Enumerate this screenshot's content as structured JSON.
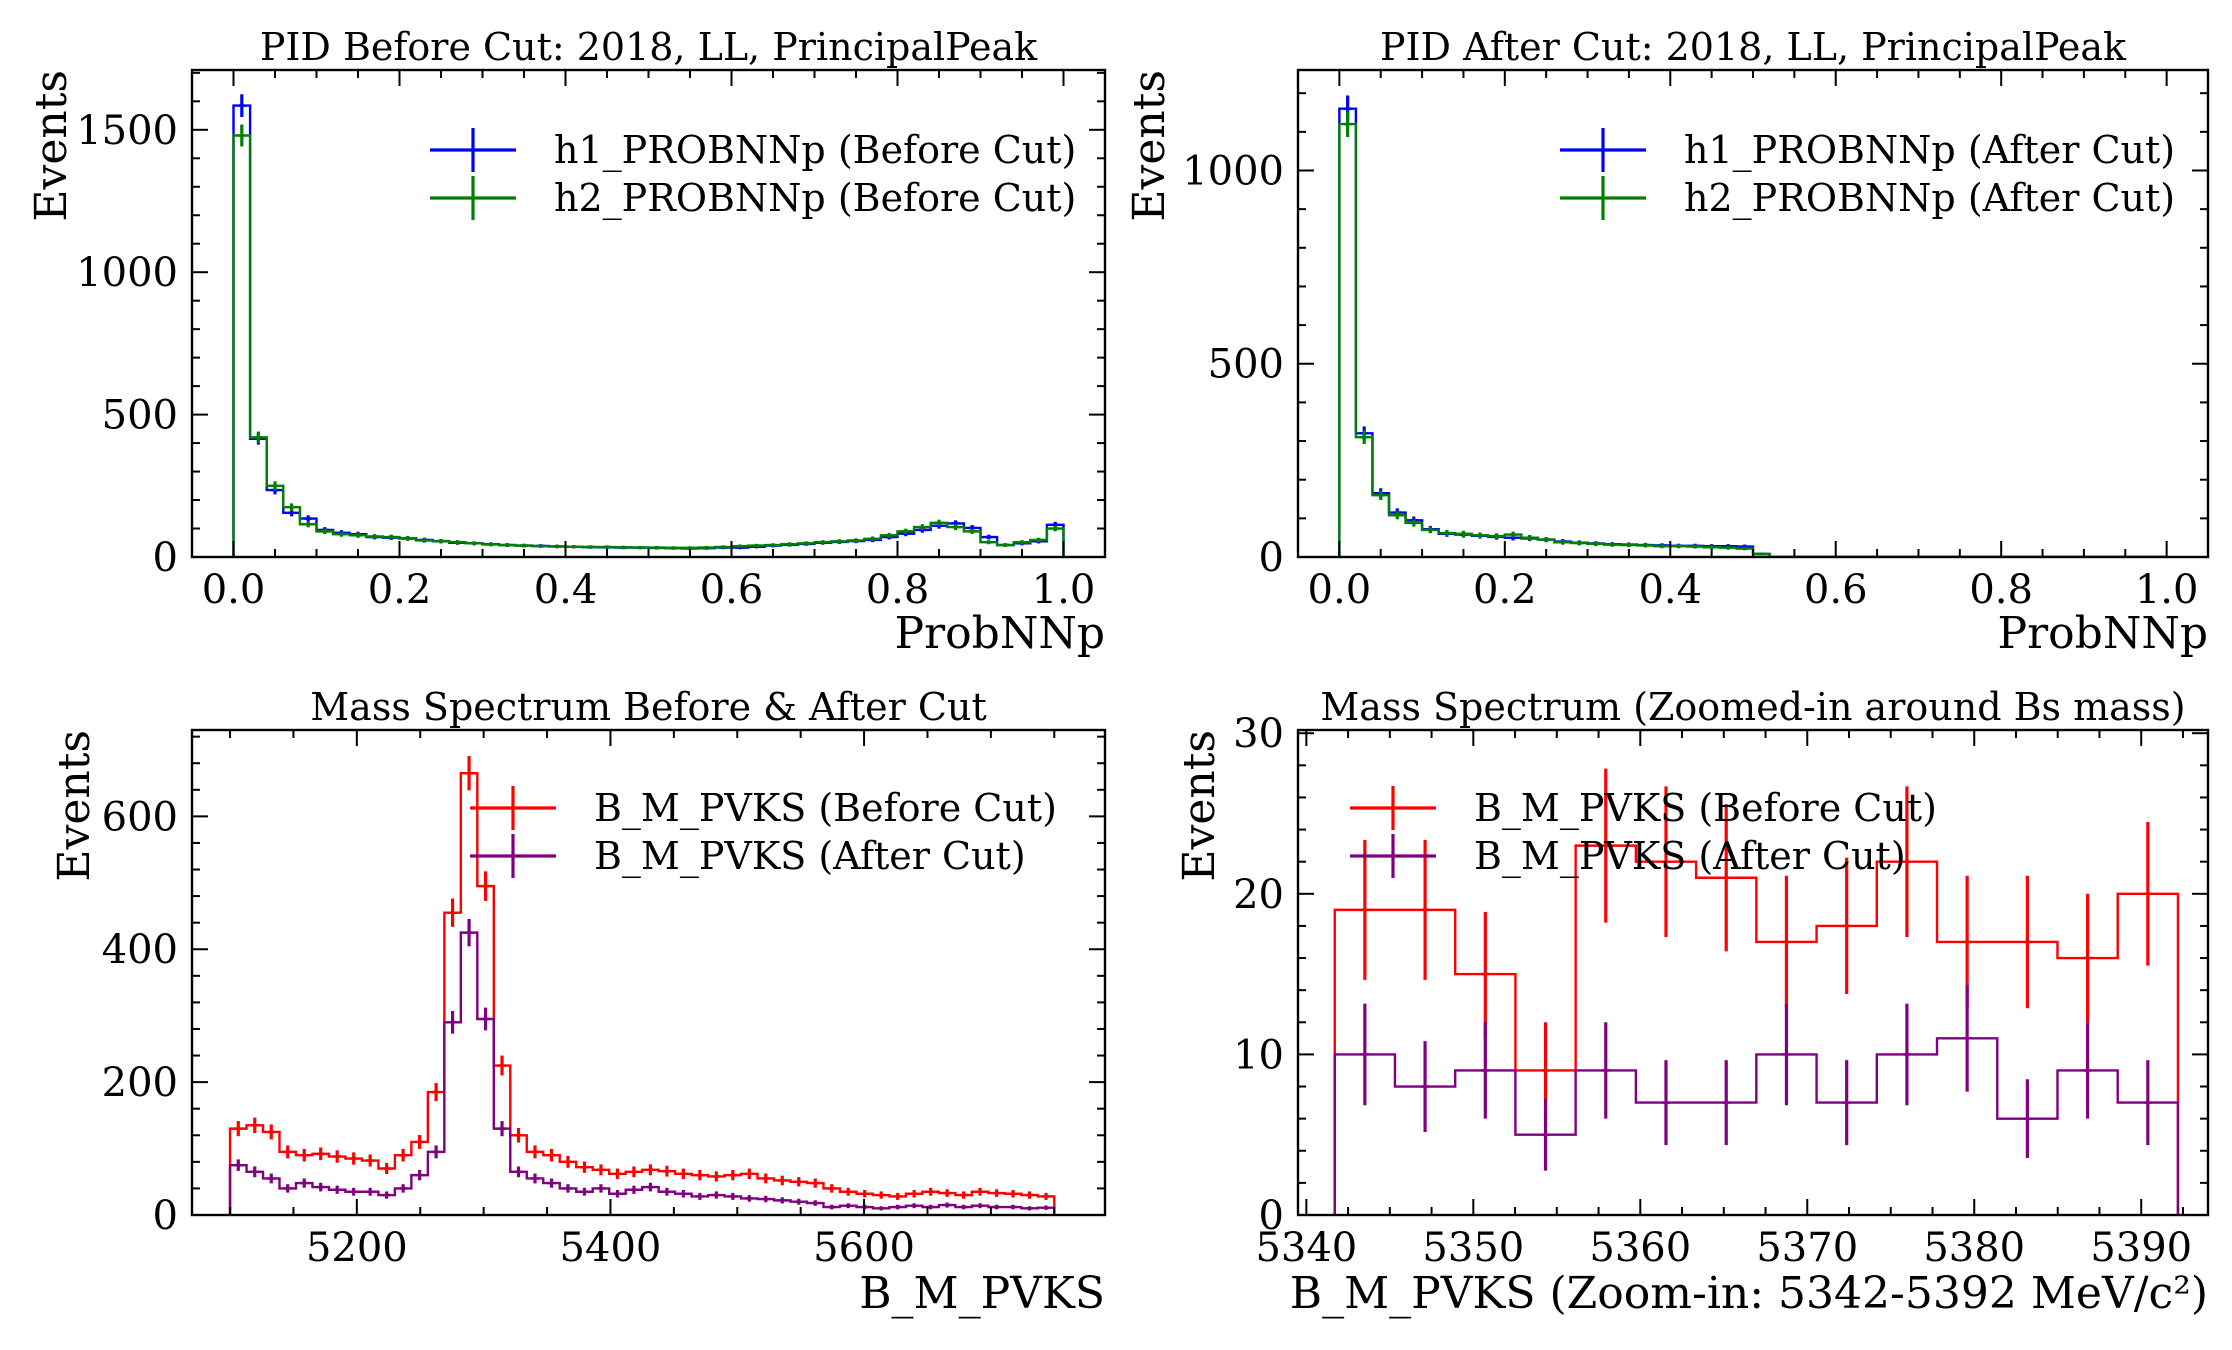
{
  "figure": {
    "layout": "2x2 grid of histograms"
  },
  "chart_data": [
    {
      "type": "histogram",
      "title": "PID Before Cut: 2018, LL, PrincipalPeak",
      "xlabel": "ProbNNp",
      "ylabel": "Events",
      "xlim": [
        -0.05,
        1.05
      ],
      "ylim": [
        0,
        1710
      ],
      "xticks": [
        0.0,
        0.2,
        0.4,
        0.6,
        0.8,
        1.0
      ],
      "xtick_labels": [
        "0.0",
        "0.2",
        "0.4",
        "0.6",
        "0.8",
        "1.0"
      ],
      "yticks": [
        0,
        500,
        1000,
        1500
      ],
      "ytick_labels": [
        "0",
        "500",
        "1000",
        "1500"
      ],
      "legend_position": "top-right",
      "bins": {
        "start": 0.0,
        "end": 1.0,
        "count": 50
      },
      "series": [
        {
          "name": "h1_PROBNNp (Before Cut)",
          "color": "#0000ff",
          "values": [
            1585,
            415,
            235,
            155,
            135,
            95,
            85,
            80,
            70,
            68,
            65,
            60,
            55,
            50,
            48,
            45,
            42,
            40,
            39,
            37,
            36,
            35,
            34,
            33,
            33,
            32,
            31,
            30,
            31,
            33,
            33,
            36,
            40,
            43,
            46,
            50,
            53,
            56,
            60,
            70,
            82,
            95,
            110,
            118,
            102,
            70,
            42,
            48,
            55,
            113
          ]
        },
        {
          "name": "h2_PROBNNp (Before Cut)",
          "color": "#008000",
          "values": [
            1480,
            420,
            250,
            175,
            115,
            90,
            80,
            76,
            72,
            70,
            66,
            58,
            56,
            52,
            48,
            44,
            42,
            40,
            38,
            37,
            36,
            35,
            35,
            34,
            33,
            33,
            32,
            32,
            33,
            35,
            38,
            40,
            42,
            45,
            48,
            52,
            55,
            58,
            64,
            76,
            90,
            105,
            120,
            105,
            90,
            52,
            42,
            52,
            60,
            100
          ]
        }
      ]
    },
    {
      "type": "histogram",
      "title": "PID After Cut: 2018, LL, PrincipalPeak",
      "xlabel": "ProbNNp",
      "ylabel": "Events",
      "xlim": [
        -0.05,
        1.05
      ],
      "ylim": [
        0,
        1260
      ],
      "xticks": [
        0.0,
        0.2,
        0.4,
        0.6,
        0.8,
        1.0
      ],
      "xtick_labels": [
        "0.0",
        "0.2",
        "0.4",
        "0.6",
        "0.8",
        "1.0"
      ],
      "yticks": [
        0,
        500,
        1000
      ],
      "ytick_labels": [
        "0",
        "500",
        "1000"
      ],
      "legend_position": "top-right",
      "bins": {
        "start": 0.0,
        "end": 1.0,
        "count": 50
      },
      "series": [
        {
          "name": "h1_PROBNNp (After Cut)",
          "color": "#0000ff",
          "values": [
            1160,
            320,
            165,
            115,
            95,
            72,
            60,
            58,
            55,
            52,
            50,
            48,
            45,
            40,
            37,
            35,
            33,
            32,
            31,
            30,
            29,
            29,
            28,
            28,
            27,
            8,
            0,
            0,
            0,
            0,
            0,
            0,
            0,
            0,
            0,
            0,
            0,
            0,
            0,
            0,
            0,
            0,
            0,
            0,
            0,
            0,
            0,
            0,
            0,
            0
          ]
        },
        {
          "name": "h2_PROBNNp (After Cut)",
          "color": "#008000",
          "values": [
            1120,
            310,
            160,
            108,
            88,
            70,
            62,
            60,
            56,
            54,
            58,
            50,
            45,
            38,
            36,
            34,
            32,
            31,
            30,
            28,
            28,
            27,
            25,
            24,
            22,
            8,
            0,
            0,
            0,
            0,
            0,
            0,
            0,
            0,
            0,
            0,
            0,
            0,
            0,
            0,
            0,
            0,
            0,
            0,
            0,
            0,
            0,
            0,
            0,
            0
          ]
        }
      ]
    },
    {
      "type": "histogram",
      "title": "Mass Spectrum Before & After Cut",
      "xlabel": "B_M_PVKS",
      "ylabel": "Events",
      "xlim": [
        5070,
        5790
      ],
      "ylim": [
        0,
        730
      ],
      "xticks": [
        5200,
        5400,
        5600
      ],
      "xtick_labels": [
        "5200",
        "5400",
        "5600"
      ],
      "yticks": [
        0,
        200,
        400,
        600
      ],
      "ytick_labels": [
        "0",
        "200",
        "400",
        "600"
      ],
      "legend_position": "top-right",
      "bins": {
        "start": 5100,
        "end": 5750,
        "count": 50
      },
      "series": [
        {
          "name": "B_M_PVKS (Before Cut)",
          "color": "#ff0000",
          "values": [
            130,
            135,
            125,
            95,
            90,
            92,
            88,
            85,
            82,
            70,
            90,
            110,
            185,
            455,
            665,
            495,
            225,
            120,
            95,
            90,
            80,
            72,
            68,
            62,
            65,
            68,
            66,
            62,
            60,
            58,
            60,
            62,
            55,
            52,
            50,
            48,
            40,
            35,
            32,
            30,
            28,
            32,
            35,
            33,
            30,
            35,
            33,
            32,
            30,
            28
          ]
        },
        {
          "name": "B_M_PVKS (After Cut)",
          "color": "#800080",
          "values": [
            75,
            65,
            55,
            40,
            48,
            42,
            38,
            35,
            35,
            30,
            40,
            60,
            95,
            290,
            425,
            295,
            130,
            65,
            55,
            48,
            40,
            35,
            40,
            32,
            38,
            42,
            35,
            32,
            28,
            30,
            28,
            25,
            24,
            22,
            20,
            18,
            12,
            14,
            12,
            10,
            12,
            14,
            12,
            15,
            12,
            14,
            12,
            12,
            10,
            11
          ]
        }
      ]
    },
    {
      "type": "histogram",
      "title": "Mass Spectrum (Zoomed-in around Bs mass)",
      "xlabel": "B_M_PVKS (Zoom-in: 5342-5392 MeV/c²)",
      "ylabel": "Events",
      "xlim": [
        5339.5,
        5394
      ],
      "ylim": [
        0,
        30.2
      ],
      "xticks": [
        5340,
        5350,
        5360,
        5370,
        5380,
        5390
      ],
      "xtick_labels": [
        "5340",
        "5350",
        "5360",
        "5370",
        "5380",
        "5390"
      ],
      "yticks": [
        0,
        10,
        20,
        30
      ],
      "ytick_labels": [
        "0",
        "10",
        "20",
        "30"
      ],
      "legend_position": "top-left",
      "bins": {
        "start": 5341.7,
        "end": 5392.2,
        "count": 14
      },
      "series": [
        {
          "name": "B_M_PVKS (Before Cut)",
          "color": "#ff0000",
          "values": [
            19,
            19,
            15,
            9,
            23,
            22,
            21,
            17,
            18,
            22,
            17,
            17,
            16,
            20
          ]
        },
        {
          "name": "B_M_PVKS (After Cut)",
          "color": "#800080",
          "values": [
            10,
            8,
            9,
            5,
            9,
            7,
            7,
            10,
            7,
            10,
            11,
            6,
            9,
            7
          ]
        }
      ]
    }
  ]
}
